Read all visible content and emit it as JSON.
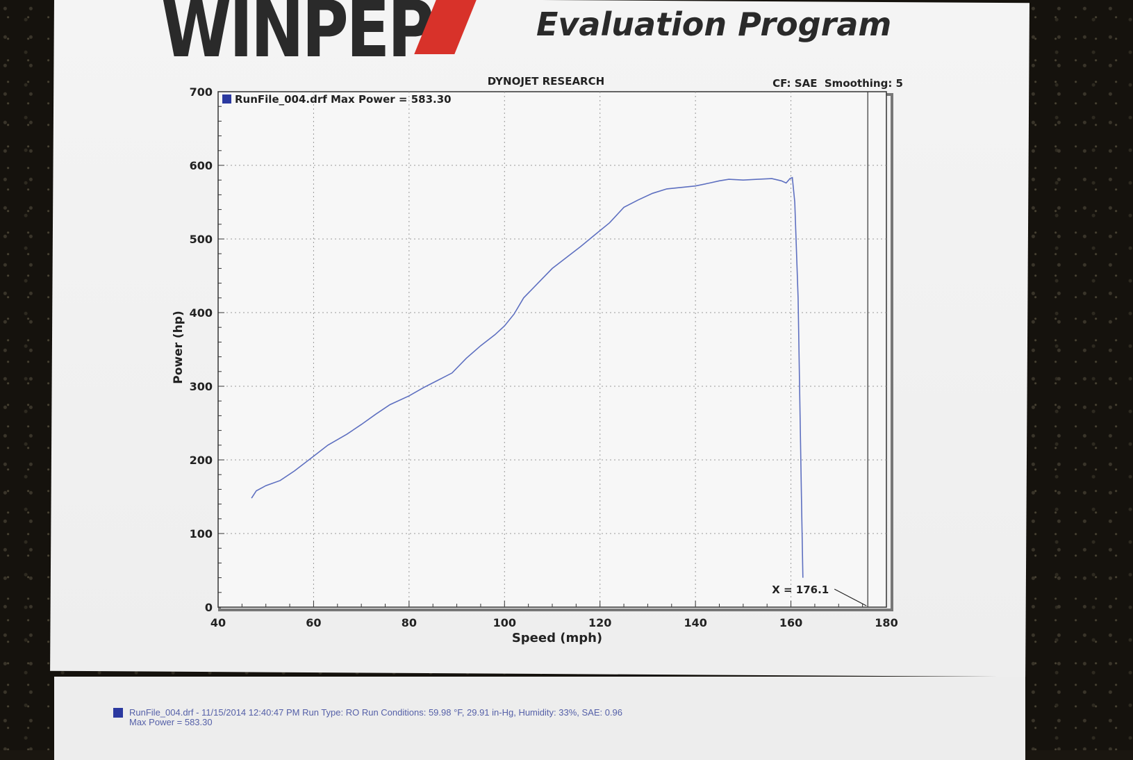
{
  "header": {
    "logo_text": "WINPEP",
    "subtitle": "Evaluation Program"
  },
  "chart_data": {
    "type": "line",
    "title": "DYNOJET RESEARCH",
    "settings_text": "CF: SAE  Smoothing: 5",
    "xlabel": "Speed (mph)",
    "ylabel": "Power (hp)",
    "xlim": [
      40,
      180
    ],
    "ylim": [
      0,
      700
    ],
    "x_ticks": [
      40,
      60,
      80,
      100,
      120,
      140,
      160,
      180
    ],
    "y_ticks": [
      0,
      100,
      200,
      300,
      400,
      500,
      600,
      700
    ],
    "grid": true,
    "legend_entry": "RunFile_004.drf Max Power = 583.30",
    "legend_position": "top-left",
    "cursor_label": "X = 176.1",
    "cursor_x": 176.1,
    "line_color": "#5d6fc0",
    "swatch_color": "#2b39a0",
    "series": [
      {
        "name": "RunFile_004.drf",
        "points": [
          [
            47,
            148
          ],
          [
            48,
            158
          ],
          [
            50,
            165
          ],
          [
            53,
            172
          ],
          [
            56,
            185
          ],
          [
            60,
            205
          ],
          [
            63,
            220
          ],
          [
            67,
            235
          ],
          [
            70,
            248
          ],
          [
            73,
            262
          ],
          [
            76,
            275
          ],
          [
            80,
            287
          ],
          [
            83,
            298
          ],
          [
            86,
            308
          ],
          [
            89,
            318
          ],
          [
            92,
            338
          ],
          [
            95,
            355
          ],
          [
            98,
            370
          ],
          [
            100,
            382
          ],
          [
            102,
            398
          ],
          [
            104,
            420
          ],
          [
            107,
            440
          ],
          [
            110,
            460
          ],
          [
            113,
            475
          ],
          [
            116,
            490
          ],
          [
            119,
            506
          ],
          [
            122,
            522
          ],
          [
            125,
            543
          ],
          [
            128,
            553
          ],
          [
            131,
            562
          ],
          [
            134,
            568
          ],
          [
            137,
            570
          ],
          [
            140,
            572
          ],
          [
            143,
            576
          ],
          [
            145,
            579
          ],
          [
            147,
            581
          ],
          [
            150,
            580
          ],
          [
            153,
            581
          ],
          [
            156,
            582
          ],
          [
            158,
            579
          ],
          [
            159,
            576
          ],
          [
            159.8,
            582
          ],
          [
            160.3,
            583.3
          ],
          [
            160.8,
            550
          ],
          [
            161.5,
            420
          ],
          [
            162.2,
            150
          ],
          [
            162.5,
            40
          ]
        ]
      }
    ]
  },
  "footer": {
    "line1": "RunFile_004.drf - 11/15/2014 12:40:47 PM  Run Type: RO  Run Conditions: 59.98 °F, 29.91 in-Hg,  Humidity: 33%, SAE: 0.96",
    "line2": "Max Power = 583.30"
  }
}
